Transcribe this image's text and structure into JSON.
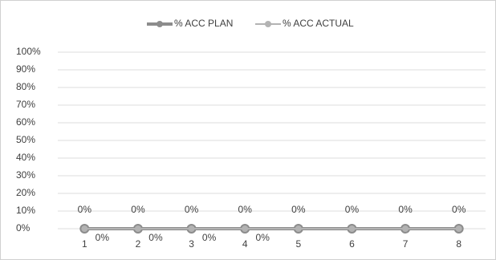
{
  "chart_data": {
    "type": "line",
    "categories": [
      "1",
      "2",
      "3",
      "4",
      "5",
      "6",
      "7",
      "8"
    ],
    "series": [
      {
        "name": "% ACC PLAN",
        "color": "#8c8c8c",
        "values": [
          0,
          0,
          0,
          0,
          0,
          0,
          0,
          0
        ],
        "value_labels": [
          "0%",
          "0%",
          "0%",
          "0%",
          "0%",
          "0%",
          "0%",
          "0%"
        ]
      },
      {
        "name": "% ACC ACTUAL",
        "color": "#b3b3b3",
        "values": [
          0,
          0,
          0,
          0,
          0,
          0,
          0,
          0
        ],
        "value_labels": [
          "0%",
          "0%",
          "0%",
          "0%",
          null,
          null,
          null,
          null
        ]
      }
    ],
    "ylim": [
      0,
      100
    ],
    "yticks": [
      {
        "value": 0,
        "label": "0%"
      },
      {
        "value": 10,
        "label": "10%"
      },
      {
        "value": 20,
        "label": "20%"
      },
      {
        "value": 30,
        "label": "30%"
      },
      {
        "value": 40,
        "label": "40%"
      },
      {
        "value": 50,
        "label": "50%"
      },
      {
        "value": 60,
        "label": "60%"
      },
      {
        "value": 70,
        "label": "70%"
      },
      {
        "value": 80,
        "label": "80%"
      },
      {
        "value": 90,
        "label": "90%"
      },
      {
        "value": 100,
        "label": "100%"
      }
    ],
    "grid": true,
    "legend": "top"
  }
}
